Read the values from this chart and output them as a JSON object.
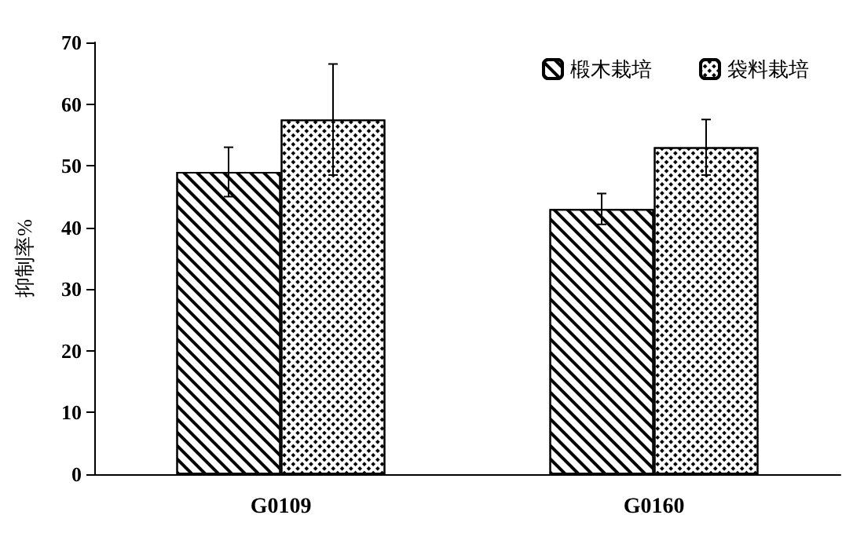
{
  "chart_data": {
    "type": "bar",
    "ylabel": "抑制率%",
    "categories": [
      "G0109",
      "G0160"
    ],
    "series": [
      {
        "name": "椴木栽培",
        "color": "#000000",
        "values": [
          49,
          43
        ],
        "errors": [
          4,
          2.5
        ]
      },
      {
        "name": "袋料栽培",
        "color": "#000000",
        "values": [
          57.5,
          53
        ],
        "errors": [
          9,
          4.5
        ]
      }
    ],
    "ylim": [
      0,
      70
    ],
    "yticks": [
      0,
      10,
      20,
      30,
      40,
      50,
      60,
      70
    ],
    "grid": false,
    "legend": "top right"
  }
}
